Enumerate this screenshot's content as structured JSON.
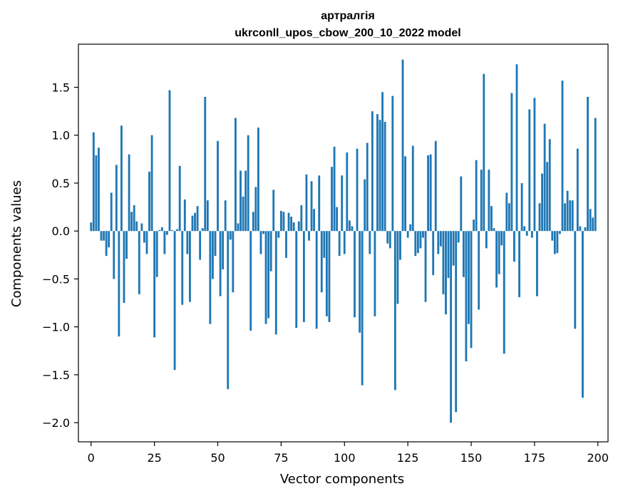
{
  "chart_data": {
    "type": "bar",
    "title": "артралгія",
    "subtitle": "ukrconll_upos_cbow_200_10_2022 model",
    "xlabel": "Vector components",
    "ylabel": "Components values",
    "xlim": [
      -5,
      204
    ],
    "ylim": [
      -2.2,
      1.95
    ],
    "xticks": [
      0,
      25,
      50,
      75,
      100,
      125,
      150,
      175,
      200
    ],
    "yticks": [
      -2.0,
      -1.5,
      -1.0,
      -0.5,
      0.0,
      0.5,
      1.0,
      1.5
    ],
    "ytick_labels": [
      "−2.0",
      "−1.5",
      "−1.0",
      "−0.5",
      "0.0",
      "0.5",
      "1.0",
      "1.5"
    ],
    "bar_color": "#1f77b4",
    "values": [
      0.09,
      1.03,
      0.79,
      0.87,
      -0.1,
      -0.1,
      -0.26,
      -0.17,
      0.4,
      -0.5,
      0.69,
      -1.1,
      1.1,
      -0.75,
      -0.29,
      0.8,
      0.2,
      0.27,
      0.1,
      -0.66,
      0.08,
      -0.12,
      -0.24,
      0.62,
      1.0,
      -1.11,
      -0.48,
      0.01,
      0.04,
      -0.24,
      -0.04,
      1.47,
      0.01,
      -1.45,
      0.02,
      0.68,
      -0.77,
      0.33,
      -0.24,
      -0.74,
      0.16,
      0.19,
      0.26,
      -0.3,
      0.03,
      1.4,
      0.32,
      -0.97,
      -0.5,
      -0.26,
      0.94,
      -0.68,
      -0.4,
      0.32,
      -1.65,
      -0.09,
      -0.64,
      1.18,
      0.08,
      0.63,
      0.36,
      0.63,
      1.0,
      -1.04,
      0.2,
      0.46,
      1.08,
      -0.24,
      -0.03,
      -0.97,
      -0.91,
      -0.42,
      0.43,
      -1.08,
      -0.07,
      0.21,
      0.2,
      -0.28,
      0.19,
      0.15,
      0.09,
      -1.01,
      0.1,
      0.27,
      -0.95,
      0.59,
      -0.1,
      0.52,
      0.23,
      -1.02,
      0.58,
      -0.64,
      -0.28,
      -0.89,
      -0.95,
      0.67,
      0.88,
      0.25,
      -0.26,
      0.58,
      -0.24,
      0.82,
      0.11,
      0.05,
      -0.9,
      0.86,
      -1.06,
      -1.61,
      0.54,
      0.92,
      -0.24,
      1.25,
      -0.89,
      1.22,
      1.16,
      1.45,
      1.14,
      -0.13,
      -0.18,
      1.41,
      -1.66,
      -0.76,
      -0.3,
      1.79,
      0.78,
      -0.07,
      0.07,
      0.89,
      -0.26,
      -0.23,
      -0.18,
      -0.07,
      -0.74,
      0.79,
      0.8,
      -0.46,
      0.94,
      -0.24,
      -0.16,
      -0.66,
      -0.87,
      -0.49,
      -2.0,
      -0.36,
      -1.89,
      -0.12,
      0.57,
      -0.48,
      -1.36,
      -0.97,
      -1.22,
      0.12,
      0.74,
      -0.82,
      0.64,
      1.64,
      -0.18,
      0.64,
      0.26,
      0.03,
      -0.59,
      -0.45,
      -0.15,
      -1.28,
      0.4,
      0.29,
      1.44,
      -0.32,
      1.74,
      -0.69,
      0.5,
      0.05,
      -0.05,
      1.27,
      -0.07,
      1.39,
      -0.68,
      0.29,
      0.6,
      1.12,
      0.72,
      0.96,
      -0.1,
      -0.24,
      -0.23,
      -0.03,
      1.57,
      0.29,
      0.42,
      0.32,
      0.32,
      -1.02,
      0.86,
      0.05,
      -1.74,
      0.04,
      1.4,
      0.23,
      0.14,
      1.18
    ]
  }
}
